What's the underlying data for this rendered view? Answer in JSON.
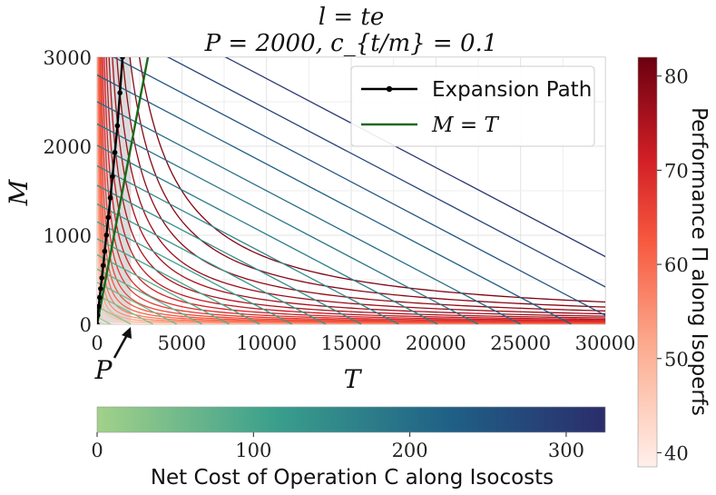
{
  "chart_data": {
    "type": "line",
    "title": "l = te",
    "subtitle": "P = 2000, c_{t/m} = 0.1",
    "xlabel": "T",
    "ylabel": "M",
    "xlim": [
      0,
      30000
    ],
    "ylim": [
      0,
      3000
    ],
    "x_ticks": [
      "0",
      "5000",
      "10000",
      "15000",
      "20000",
      "25000",
      "30000"
    ],
    "y_ticks": [
      "0",
      "1000",
      "2000",
      "3000"
    ],
    "grid": true,
    "P_marker_label": "P",
    "P_value": 2000,
    "shaded_region_x_max": 2000,
    "legend": {
      "position": "top-right",
      "entries": [
        {
          "label": "Expansion Path",
          "color": "#000000"
        },
        {
          "label": "M = T",
          "color": "#1a6b1a"
        }
      ]
    },
    "expansion_path": {
      "T": [
        0,
        40,
        90,
        150,
        210,
        280,
        360,
        450,
        550,
        660,
        780,
        910,
        1050,
        1200
      ],
      "M": [
        0,
        100,
        200,
        300,
        400,
        520,
        660,
        820,
        1000,
        1200,
        1420,
        1660,
        1930,
        2230
      ]
    },
    "expansion_path_extra": {
      "T": [
        1350,
        1500
      ],
      "M": [
        2600,
        3000
      ]
    },
    "line_MT": {
      "T": [
        0,
        3000
      ],
      "M": [
        0,
        3000
      ]
    },
    "isocosts": {
      "M_intercepts": [
        80,
        200,
        330,
        470,
        620,
        780,
        960,
        1150,
        1350,
        1560,
        1780,
        2010,
        2250,
        2500,
        2800,
        3100,
        3420,
        3760
      ],
      "C_values": [
        10,
        25,
        40,
        55,
        70,
        85,
        100,
        115,
        130,
        145,
        160,
        175,
        190,
        205,
        225,
        250,
        280,
        310
      ]
    },
    "isoperfs": {
      "k_values": [
        10000,
        35000,
        70000,
        115000,
        170000,
        240000,
        330000,
        440000,
        580000,
        760000,
        990000,
        1280000,
        1650000,
        2120000,
        2720000,
        3500000,
        4500000,
        5800000,
        7500000
      ],
      "Pi_values": [
        40,
        44,
        48,
        52,
        55,
        58,
        61,
        63,
        65,
        67,
        69,
        71,
        73,
        75,
        76,
        77,
        78,
        79,
        80
      ]
    },
    "colorbar_vertical": {
      "label": "Performance Π along Isoperfs",
      "min": 38.5,
      "max": 82,
      "ticks": [
        "40",
        "50",
        "60",
        "70",
        "80"
      ],
      "tick_values": [
        40,
        50,
        60,
        70,
        80
      ]
    },
    "colorbar_horizontal": {
      "label": "Net Cost of Operation C along Isocosts",
      "min": 0,
      "max": 325,
      "ticks": [
        "0",
        "100",
        "200",
        "300"
      ],
      "tick_values": [
        0,
        100,
        200,
        300
      ]
    }
  }
}
